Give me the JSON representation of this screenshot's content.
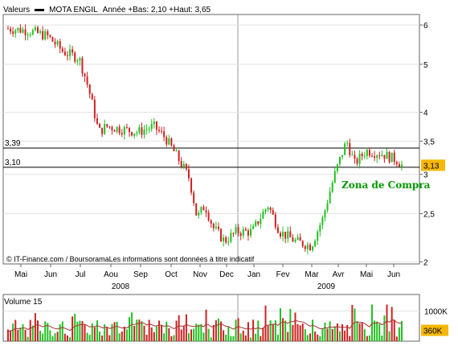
{
  "header": {
    "section": "Valeurs",
    "instrument": "MOTA ENGIL",
    "range_text": "Année +Bas: 2,10 +Haut: 3,65"
  },
  "copyright": "© IT-Finance.com / BoursoramaLes informations sont données à titre indicatif",
  "annotation": "Zona de Compra",
  "colors": {
    "up": "#22c022",
    "down": "#cc2222",
    "accent_green": "#009900",
    "last_badge": "#f5b800",
    "ma_line": "#aa3333"
  },
  "chart_data": [
    {
      "type": "candlestick",
      "x_month_labels": [
        "Mai",
        "Jun",
        "Jul",
        "Aou",
        "Sep",
        "Oct",
        "Nov",
        "Dec",
        "Jan",
        "Fev",
        "Mar",
        "Avr",
        "Mai",
        "Jun"
      ],
      "x_year_labels": [
        "2008",
        "2009"
      ],
      "y_tick_labels": [
        "2",
        "2,5",
        "3",
        "3,5",
        "4",
        "5",
        "6"
      ],
      "y_ticks": [
        2,
        2.5,
        3,
        3.5,
        4,
        5,
        6
      ],
      "scale": "log",
      "ylim": [
        1.98,
        6.3
      ],
      "reference_lines": [
        {
          "label": "3,39",
          "value": 3.39
        },
        {
          "label": "3,10",
          "value": 3.1
        }
      ],
      "last_value": 3.13,
      "last_label": "3,13",
      "anchors": [
        [
          0,
          5.9
        ],
        [
          5,
          5.85
        ],
        [
          10,
          5.7
        ],
        [
          14,
          5.3
        ],
        [
          18,
          5.15
        ],
        [
          20,
          4.6
        ],
        [
          23,
          3.65
        ],
        [
          25,
          3.75
        ],
        [
          29,
          3.7
        ],
        [
          33,
          3.65
        ],
        [
          37,
          3.75
        ],
        [
          40,
          3.55
        ],
        [
          43,
          3.25
        ],
        [
          46,
          2.95
        ],
        [
          48,
          2.45
        ],
        [
          50,
          2.6
        ],
        [
          52,
          2.35
        ],
        [
          55,
          2.2
        ],
        [
          58,
          2.3
        ],
        [
          62,
          2.3
        ],
        [
          66,
          2.6
        ],
        [
          69,
          2.3
        ],
        [
          73,
          2.2
        ],
        [
          77,
          2.15
        ],
        [
          80,
          2.45
        ],
        [
          83,
          3.0
        ],
        [
          86,
          3.5
        ],
        [
          88,
          3.15
        ],
        [
          91,
          3.35
        ],
        [
          95,
          3.3
        ],
        [
          99,
          3.2
        ],
        [
          100,
          3.13
        ]
      ],
      "volume": {
        "label": "Volume 15",
        "y_tick_labels": [
          "1000K"
        ],
        "y_ticks": [
          1000
        ],
        "last_value": 360,
        "last_label": "360K",
        "ylim": [
          0,
          1550
        ]
      }
    }
  ]
}
